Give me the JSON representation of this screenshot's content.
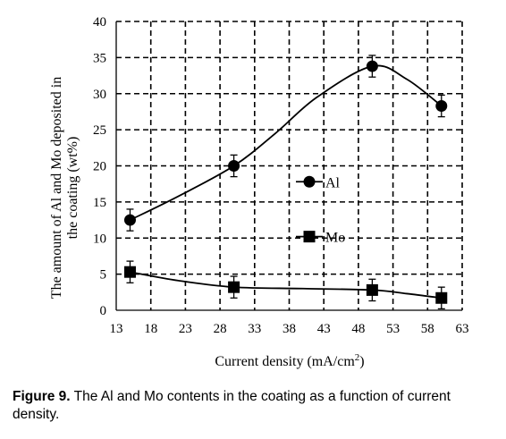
{
  "chart_data": {
    "type": "line",
    "xlabel_prefix": "Current density (mA/cm",
    "xlabel_sup": "2",
    "xlabel_suffix": ")",
    "ylabel_line1": "The amount of Al and Mo deposited in",
    "ylabel_line2": "the coating (wt%)",
    "xticks": [
      13,
      18,
      23,
      28,
      33,
      38,
      43,
      48,
      53,
      58,
      63
    ],
    "yticks": [
      0,
      5,
      10,
      15,
      20,
      25,
      30,
      35,
      40
    ],
    "xlim": [
      13,
      63
    ],
    "ylim": [
      0,
      40
    ],
    "grid": true,
    "grid_style": "dashed",
    "legend_position": "center-right",
    "series": [
      {
        "name": "Al",
        "marker": "circle",
        "x": [
          15,
          30,
          50,
          60
        ],
        "y": [
          12.5,
          20,
          33.8,
          28.3
        ],
        "error": [
          1.5,
          1.5,
          1.5,
          1.5
        ],
        "smooth": [
          [
            15,
            12.5
          ],
          [
            22,
            15.8
          ],
          [
            30,
            20
          ],
          [
            36,
            24.5
          ],
          [
            42,
            29.5
          ],
          [
            50,
            33.8
          ],
          [
            55,
            32
          ],
          [
            60,
            28.3
          ]
        ]
      },
      {
        "name": "Mo",
        "marker": "square",
        "x": [
          15,
          30,
          50,
          60
        ],
        "y": [
          5.3,
          3.2,
          2.8,
          1.7
        ],
        "error": [
          1.5,
          1.5,
          1.5,
          1.5
        ],
        "smooth": [
          [
            15,
            5.3
          ],
          [
            22,
            4.1
          ],
          [
            30,
            3.2
          ],
          [
            40,
            3.0
          ],
          [
            50,
            2.8
          ],
          [
            55,
            2.3
          ],
          [
            60,
            1.7
          ]
        ]
      }
    ]
  },
  "caption": {
    "label": "Figure 9.",
    "text": " The Al and Mo contents in the coating as a function of current density."
  }
}
